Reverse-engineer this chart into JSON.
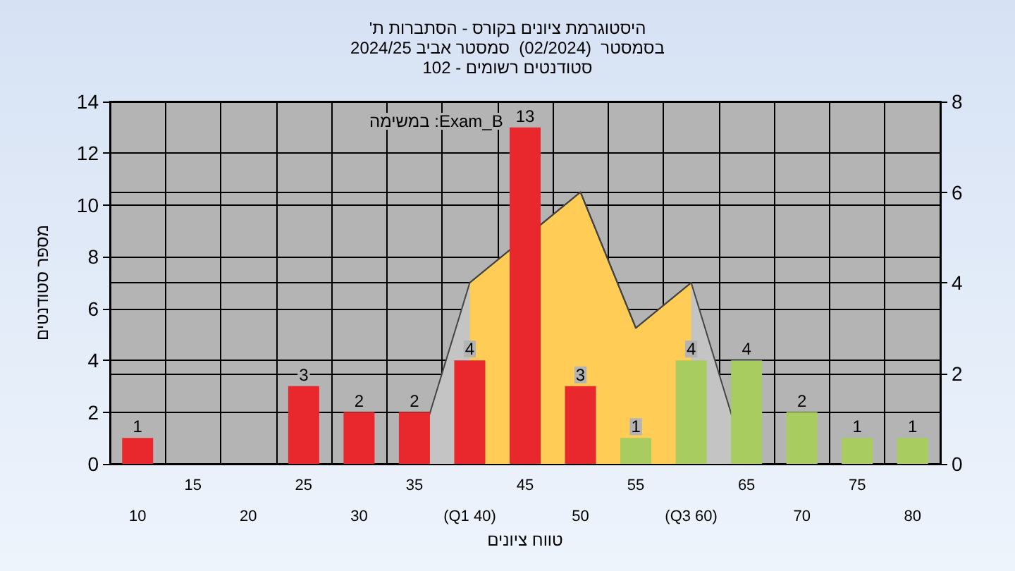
{
  "chart_data": {
    "type": "bar",
    "title": "'היסטוגרמת ציונים בקורס - הסתברות ת",
    "subtitle": "בסמסטר  (02/2024)  סמסטר אביב 2024/25\nסטודנטים רשומים - 102",
    "xlabel": "טווח ציונים",
    "ylabel": "מספר סטודנטים",
    "annotations": [
      "במשימה :Exam_B"
    ],
    "categories": [
      "10",
      "15",
      "20",
      "25",
      "30",
      "35",
      "(Q1 40)",
      "45",
      "50",
      "55",
      "(Q3 60)",
      "65",
      "70",
      "75",
      "80"
    ],
    "series": [
      {
        "type": "area",
        "axis": "y2",
        "color": "#c4c4c4",
        "values": [
          null,
          null,
          null,
          null,
          null,
          0,
          4,
          null,
          6,
          3,
          4,
          0,
          null,
          null,
          null
        ]
      },
      {
        "type": "area",
        "axis": "y2",
        "color": "#ffcc55",
        "values": [
          null,
          null,
          null,
          null,
          null,
          null,
          4,
          null,
          6,
          3,
          4,
          null,
          null,
          null,
          null
        ]
      },
      {
        "values": [
          1,
          0,
          0,
          3,
          2,
          2,
          4,
          13,
          3,
          1,
          4,
          4,
          2,
          1,
          1
        ],
        "colors": [
          "#e8282c",
          "#e8282c",
          "#e8282c",
          "#e8282c",
          "#e8282c",
          "#e8282c",
          "#e8282c",
          "#e8282c",
          "#e8282c",
          "#a8cc60",
          "#a8cc60",
          "#a8cc60",
          "#a8cc60",
          "#a8cc60",
          "#a8cc60"
        ],
        "value_labels": [
          "1",
          null,
          null,
          "3",
          "2",
          "2",
          "4",
          "13",
          "3",
          "1",
          "4",
          "4",
          "2",
          "1",
          "1"
        ]
      }
    ],
    "ylim": [
      0,
      14
    ],
    "yticks": [
      0,
      2,
      4,
      6,
      8,
      10,
      12,
      14
    ],
    "y2lim": [
      0,
      8
    ],
    "y2ticks": [
      0,
      2,
      4,
      6,
      8
    ],
    "grid": true
  }
}
